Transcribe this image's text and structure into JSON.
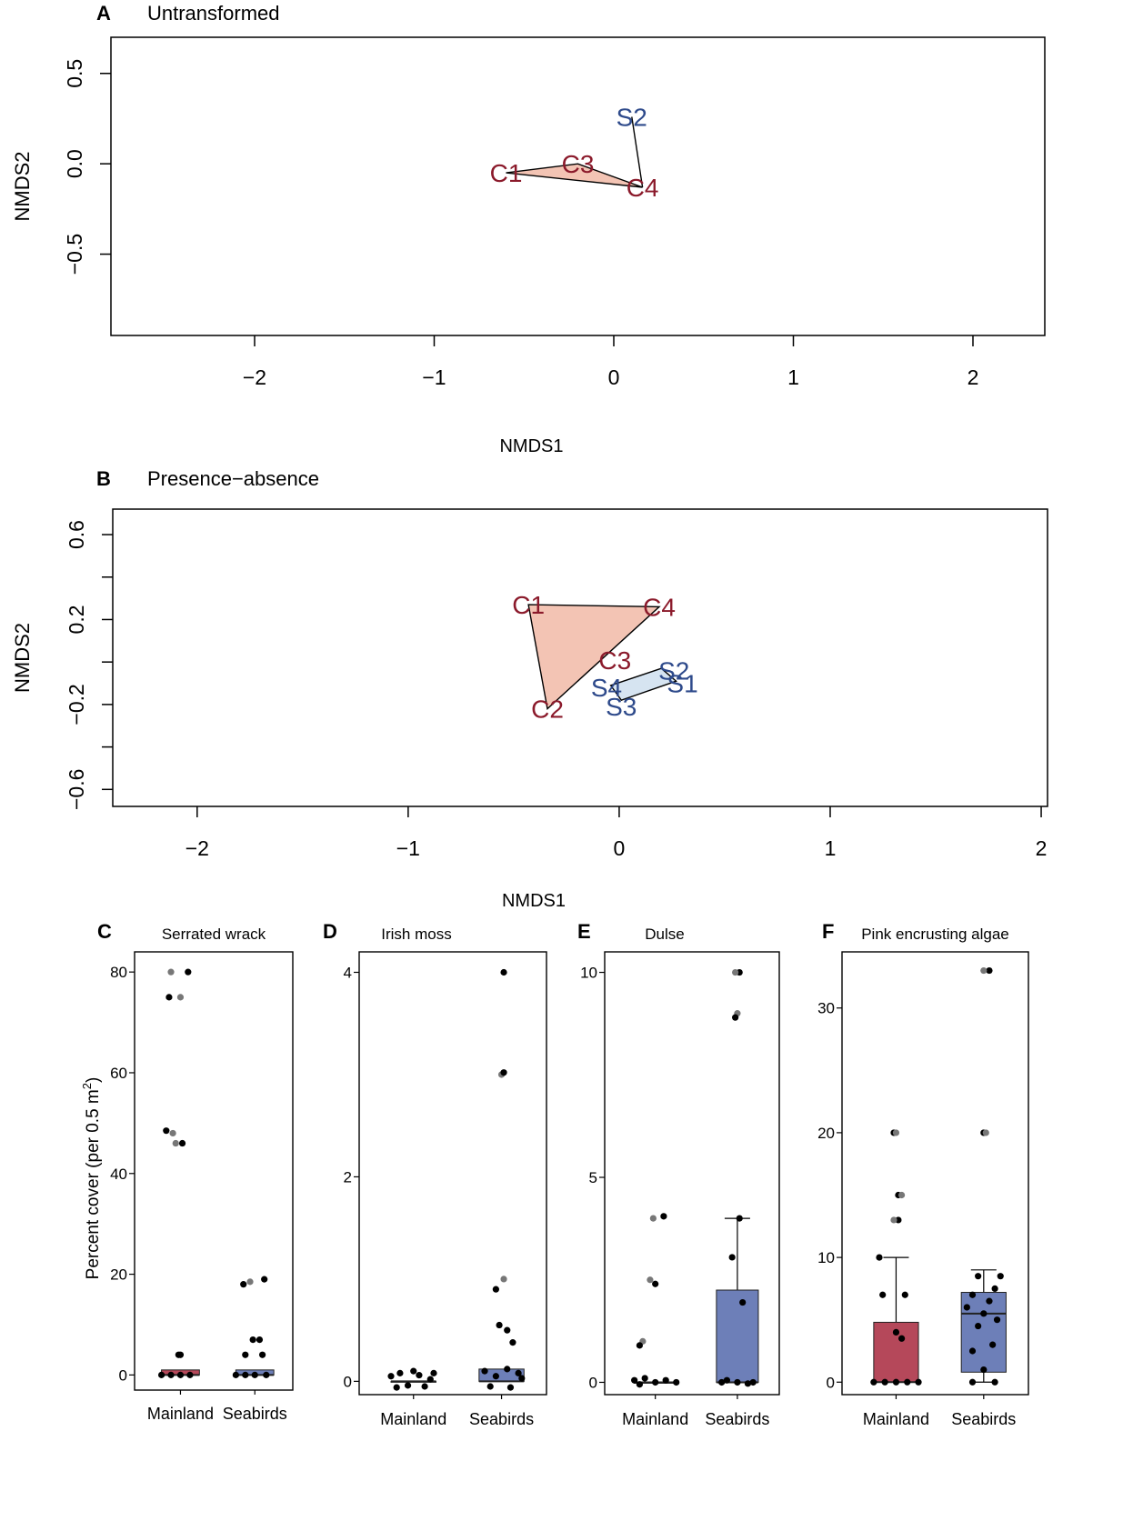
{
  "colors": {
    "control_text": "#8B1A2B",
    "seabird_text": "#2E4A8B",
    "control_fill": "#F3C4B4",
    "seabird_fill": "#D6E4F1",
    "mainland_box": "#B5485A",
    "seabirds_box": "#6D7FB8",
    "point_black": "#000000",
    "point_gray": "#777777"
  },
  "chart_data": [
    {
      "id": "A",
      "type": "scatter",
      "panel_letter": "A",
      "title": "Untransformed",
      "xlabel": "NMDS1",
      "ylabel": "NMDS2",
      "xlim": [
        -2.8,
        2.4
      ],
      "ylim": [
        -0.95,
        0.7
      ],
      "xticks": [
        -2,
        -1,
        0,
        1,
        2
      ],
      "xtick_labels": [
        "−2",
        "−1",
        "0",
        "1",
        "2"
      ],
      "yticks": [
        0.5,
        0.0,
        -0.5
      ],
      "ytick_labels": [
        "0.5",
        "0.0",
        "−0.5"
      ],
      "points": [
        {
          "label": "C1",
          "group": "control",
          "x": -0.6,
          "y": -0.05
        },
        {
          "label": "C3",
          "group": "control",
          "x": -0.2,
          "y": 0.0
        },
        {
          "label": "C4",
          "group": "control",
          "x": 0.16,
          "y": -0.13
        },
        {
          "label": "S2",
          "group": "seabird",
          "x": 0.1,
          "y": 0.26
        }
      ],
      "hulls": [
        {
          "group": "control",
          "vertices": [
            [
              -0.6,
              -0.05
            ],
            [
              -0.2,
              0.0
            ],
            [
              0.16,
              -0.13
            ]
          ]
        },
        {
          "group": "seabird",
          "vertices": [
            [
              0.1,
              0.26
            ],
            [
              0.16,
              -0.13
            ]
          ]
        }
      ]
    },
    {
      "id": "B",
      "type": "scatter",
      "panel_letter": "B",
      "title": "Presence−absence",
      "xlabel": "NMDS1",
      "ylabel": "NMDS2",
      "xlim": [
        -2.4,
        2.03
      ],
      "ylim": [
        -0.68,
        0.72
      ],
      "xticks": [
        -2,
        -1,
        0,
        1,
        2
      ],
      "xtick_labels": [
        "−2",
        "−1",
        "0",
        "1",
        "2"
      ],
      "yticks": [
        0.6,
        0.4,
        0.2,
        0.0,
        -0.2,
        -0.4,
        -0.6
      ],
      "ytick_labels": [
        "0.6",
        "",
        "0.2",
        "",
        "−0.2",
        "",
        "−0.6"
      ],
      "points": [
        {
          "label": "C1",
          "group": "control",
          "x": -0.43,
          "y": 0.27
        },
        {
          "label": "C4",
          "group": "control",
          "x": 0.19,
          "y": 0.26
        },
        {
          "label": "C3",
          "group": "control",
          "x": -0.02,
          "y": 0.01
        },
        {
          "label": "C2",
          "group": "control",
          "x": -0.34,
          "y": -0.22
        },
        {
          "label": "S2",
          "group": "seabird",
          "x": 0.26,
          "y": -0.04
        },
        {
          "label": "S1",
          "group": "seabird",
          "x": 0.3,
          "y": -0.1
        },
        {
          "label": "S4",
          "group": "seabird",
          "x": -0.06,
          "y": -0.12
        },
        {
          "label": "S3",
          "group": "seabird",
          "x": 0.01,
          "y": -0.21
        }
      ],
      "hulls": [
        {
          "group": "control",
          "vertices": [
            [
              -0.43,
              0.27
            ],
            [
              0.19,
              0.26
            ],
            [
              -0.34,
              -0.22
            ]
          ]
        },
        {
          "group": "seabird",
          "vertices": [
            [
              -0.04,
              -0.11
            ],
            [
              0.2,
              -0.03
            ],
            [
              0.27,
              -0.09
            ],
            [
              0.01,
              -0.18
            ]
          ]
        }
      ]
    },
    {
      "id": "C",
      "type": "box",
      "panel_letter": "C",
      "title": "Serrated wrack",
      "ylabel": "Percent cover (per 0.5 m",
      "ylabel_sup": "2",
      "ylabel_end": ")",
      "categories": [
        "Mainland",
        "Seabirds"
      ],
      "ylim": [
        -3,
        84
      ],
      "yticks": [
        0,
        20,
        40,
        60,
        80
      ],
      "ytick_labels": [
        "0",
        "20",
        "40",
        "60",
        "80"
      ],
      "boxes": [
        {
          "q1": 0,
          "median": 0,
          "q3": 1,
          "whisker_low": 0,
          "whisker_high": 1
        },
        {
          "q1": 0,
          "median": 0,
          "q3": 1,
          "whisker_low": 0,
          "whisker_high": 1
        }
      ],
      "points": [
        [
          [
            0.08,
            80
          ],
          [
            -0.1,
            80,
            "g"
          ],
          [
            -0.12,
            75
          ],
          [
            0.0,
            75,
            "g"
          ],
          [
            -0.15,
            48.5
          ],
          [
            -0.08,
            48,
            "g"
          ],
          [
            -0.05,
            46,
            "g"
          ],
          [
            0.02,
            46
          ],
          [
            -0.02,
            4
          ],
          [
            0.0,
            4
          ],
          [
            -0.2,
            0
          ],
          [
            -0.1,
            0
          ],
          [
            0.0,
            0
          ],
          [
            0.1,
            0
          ]
        ],
        [
          [
            0.1,
            19
          ],
          [
            -0.05,
            18.5,
            "g"
          ],
          [
            -0.12,
            18
          ],
          [
            -0.02,
            7
          ],
          [
            0.05,
            7
          ],
          [
            -0.1,
            4
          ],
          [
            0.08,
            4
          ],
          [
            -0.2,
            0
          ],
          [
            -0.1,
            0
          ],
          [
            0.0,
            0
          ],
          [
            0.12,
            0
          ]
        ]
      ]
    },
    {
      "id": "D",
      "type": "box",
      "panel_letter": "D",
      "title": "Irish moss",
      "categories": [
        "Mainland",
        "Seabirds"
      ],
      "ylim": [
        -0.13,
        4.2
      ],
      "yticks": [
        0,
        2,
        4
      ],
      "ytick_labels": [
        "0",
        "2",
        "4"
      ],
      "boxes": [
        {
          "q1": 0,
          "median": 0,
          "q3": 0,
          "whisker_low": 0,
          "whisker_high": 0
        },
        {
          "q1": 0,
          "median": 0,
          "q3": 0.12,
          "whisker_low": 0,
          "whisker_high": 0.12
        }
      ],
      "points": [
        [
          [
            -0.2,
            0.05
          ],
          [
            -0.12,
            0.08
          ],
          [
            -0.05,
            -0.04
          ],
          [
            0.05,
            0.06
          ],
          [
            0.15,
            0.02
          ],
          [
            -0.15,
            -0.06
          ],
          [
            0.0,
            0.1
          ],
          [
            0.1,
            -0.05
          ],
          [
            0.18,
            0.08
          ]
        ],
        [
          [
            0.02,
            4.0
          ],
          [
            0.0,
            3.0,
            "g"
          ],
          [
            0.02,
            3.02
          ],
          [
            0.02,
            1.0,
            "g"
          ],
          [
            -0.05,
            0.9
          ],
          [
            -0.02,
            0.55
          ],
          [
            0.05,
            0.5
          ],
          [
            0.1,
            0.38
          ],
          [
            -0.15,
            0.1
          ],
          [
            -0.05,
            0.05
          ],
          [
            0.05,
            0.12
          ],
          [
            0.15,
            0.08
          ],
          [
            -0.1,
            -0.05
          ],
          [
            0.08,
            -0.06
          ],
          [
            0.18,
            0.03
          ]
        ]
      ]
    },
    {
      "id": "E",
      "type": "box",
      "panel_letter": "E",
      "title": "Dulse",
      "categories": [
        "Mainland",
        "Seabirds"
      ],
      "ylim": [
        -0.3,
        10.5
      ],
      "yticks": [
        0,
        5,
        10
      ],
      "ytick_labels": [
        "0",
        "5",
        "10"
      ],
      "boxes": [
        {
          "q1": 0,
          "median": 0,
          "q3": 0,
          "whisker_low": 0,
          "whisker_high": 0
        },
        {
          "q1": 0,
          "median": 0,
          "q3": 2.25,
          "whisker_low": 0,
          "whisker_high": 4
        }
      ],
      "points": [
        [
          [
            0.08,
            4.05
          ],
          [
            -0.02,
            4.0,
            "g"
          ],
          [
            -0.05,
            2.5,
            "g"
          ],
          [
            0.0,
            2.4
          ],
          [
            -0.12,
            1.0,
            "g"
          ],
          [
            -0.15,
            0.9
          ],
          [
            -0.2,
            0.05
          ],
          [
            -0.1,
            0.1
          ],
          [
            0.0,
            0.0
          ],
          [
            0.1,
            0.05
          ],
          [
            0.2,
            0.0
          ],
          [
            -0.15,
            -0.05
          ]
        ],
        [
          [
            0.02,
            10.0
          ],
          [
            -0.02,
            10.0,
            "g"
          ],
          [
            0.0,
            9.0,
            "g"
          ],
          [
            -0.02,
            8.9
          ],
          [
            0.02,
            4.0
          ],
          [
            -0.05,
            3.05
          ],
          [
            0.05,
            1.95
          ],
          [
            -0.15,
            0.0
          ],
          [
            0.0,
            0.0
          ],
          [
            0.15,
            0.0
          ],
          [
            -0.1,
            0.05
          ],
          [
            0.1,
            -0.03
          ]
        ]
      ]
    },
    {
      "id": "F",
      "type": "box",
      "panel_letter": "F",
      "title": "Pink encrusting algae",
      "categories": [
        "Mainland",
        "Seabirds"
      ],
      "ylim": [
        -1,
        34.5
      ],
      "yticks": [
        0,
        10,
        20,
        30
      ],
      "ytick_labels": [
        "0",
        "10",
        "20",
        "30"
      ],
      "boxes": [
        {
          "q1": 0,
          "median": 0,
          "q3": 4.8,
          "whisker_low": 0,
          "whisker_high": 10
        },
        {
          "q1": 0.8,
          "median": 5.5,
          "q3": 7.2,
          "whisker_low": 0,
          "whisker_high": 9
        }
      ],
      "points": [
        [
          [
            -0.02,
            20
          ],
          [
            0.0,
            20,
            "g"
          ],
          [
            0.02,
            15
          ],
          [
            0.05,
            15,
            "g"
          ],
          [
            0.02,
            13
          ],
          [
            -0.02,
            13,
            "g"
          ],
          [
            -0.15,
            10
          ],
          [
            -0.12,
            7
          ],
          [
            0.08,
            7
          ],
          [
            0.0,
            4
          ],
          [
            -0.2,
            0
          ],
          [
            -0.1,
            0
          ],
          [
            0.0,
            0
          ],
          [
            0.1,
            0
          ],
          [
            0.2,
            0
          ],
          [
            0.05,
            3.5
          ]
        ],
        [
          [
            0.05,
            33
          ],
          [
            0.0,
            33,
            "g"
          ],
          [
            0.0,
            20
          ],
          [
            0.02,
            20,
            "g"
          ],
          [
            0.15,
            8.5
          ],
          [
            -0.05,
            8.5
          ],
          [
            0.1,
            7.5
          ],
          [
            -0.1,
            7
          ],
          [
            0.05,
            6.5
          ],
          [
            -0.15,
            6
          ],
          [
            0.0,
            5.5
          ],
          [
            0.12,
            5
          ],
          [
            -0.05,
            4.5
          ],
          [
            0.08,
            3
          ],
          [
            -0.1,
            2.5
          ],
          [
            0.0,
            1
          ],
          [
            0.1,
            0
          ],
          [
            -0.1,
            0
          ]
        ]
      ]
    }
  ]
}
